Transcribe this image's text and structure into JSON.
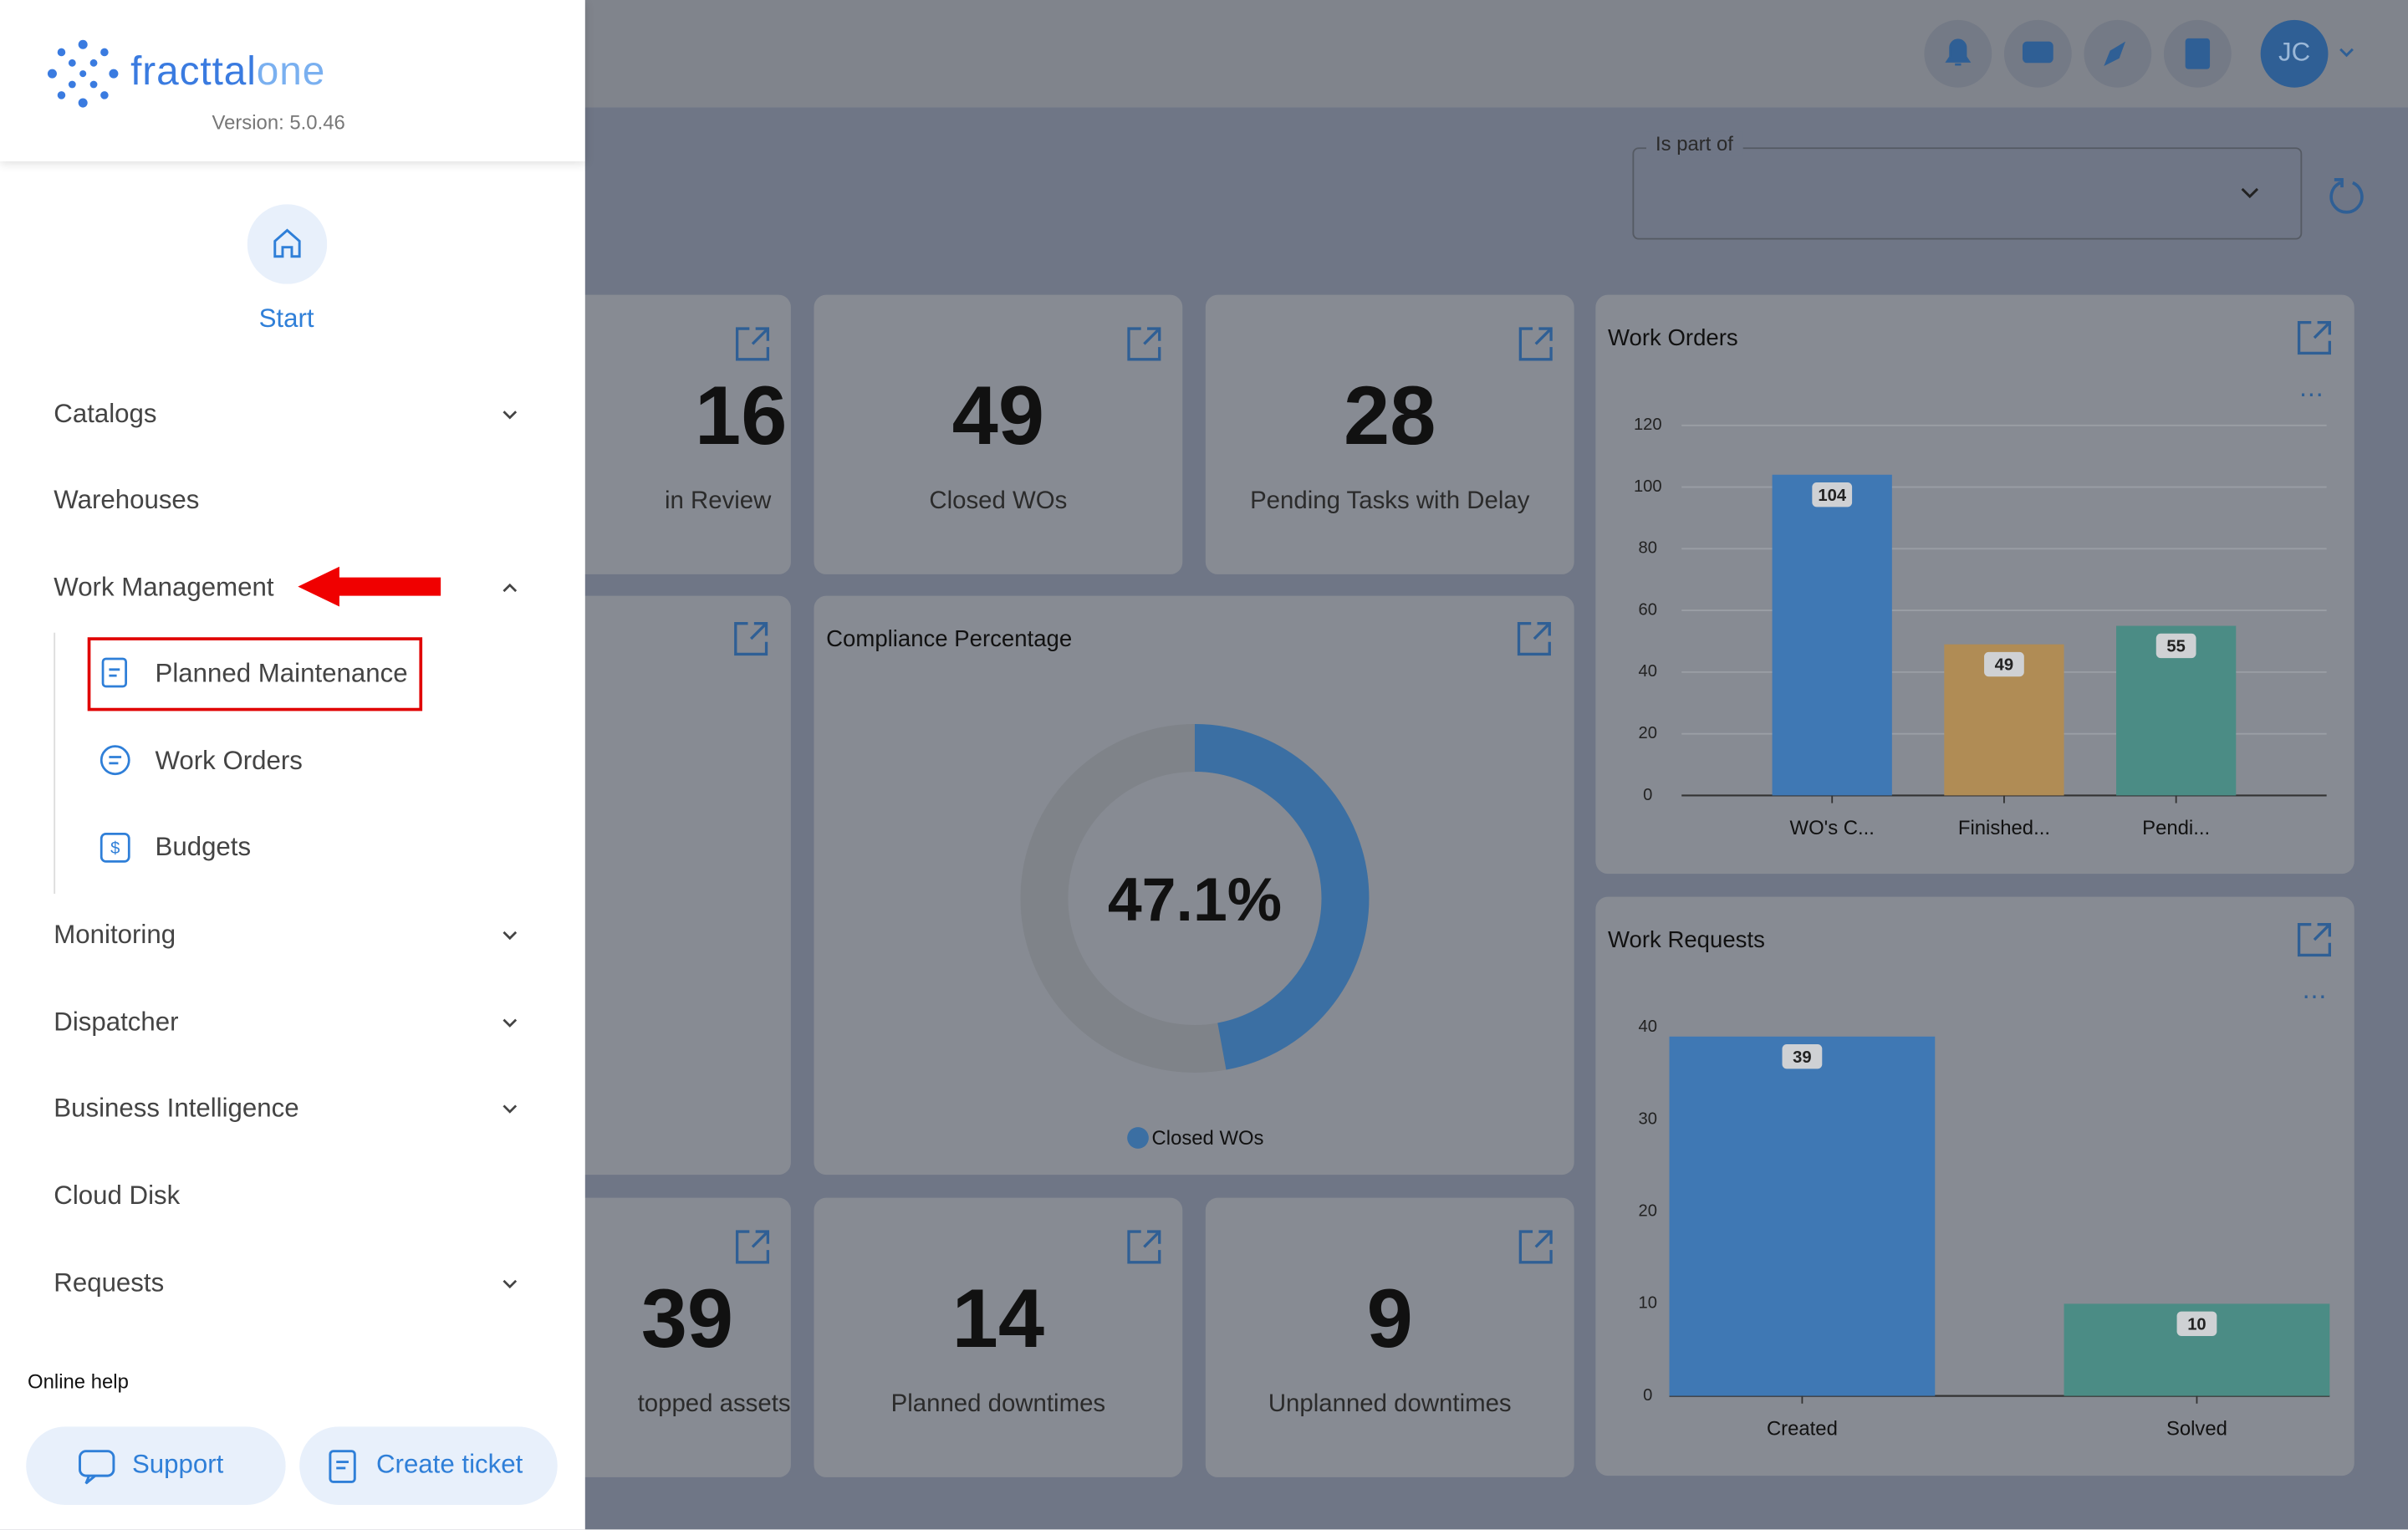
{
  "header": {
    "avatar": "JC"
  },
  "sidebar": {
    "logo": [
      "fracttal",
      "one"
    ],
    "version": "Version: 5.0.46",
    "start": "Start",
    "menu": [
      "Catalogs",
      "Warehouses",
      "Work Management",
      "Monitoring",
      "Dispatcher",
      "Business Intelligence",
      "Cloud Disk",
      "Requests"
    ],
    "submenu": [
      "Planned Maintenance",
      "Work Orders",
      "Budgets"
    ],
    "online_help": "Online help",
    "buttons": [
      "Support",
      "Create ticket"
    ]
  },
  "filter": {
    "label": "Is part of"
  },
  "kpis": [
    {
      "value": 16,
      "label": "in Review"
    },
    {
      "value": 49,
      "label": "Closed WOs"
    },
    {
      "value": 28,
      "label": "Pending Tasks with Delay"
    },
    {
      "value": 39,
      "label": "topped assets"
    },
    {
      "value": 14,
      "label": "Planned downtimes"
    },
    {
      "value": 9,
      "label": "Unplanned downtimes"
    }
  ],
  "chart_data": [
    {
      "type": "donut",
      "title": "Compliance Percentage",
      "series": [
        {
          "name": "Closed WOs",
          "color": "#3b6fa3",
          "values": [
            47.1
          ],
          "value_labels": [
            "47.1%"
          ]
        }
      ]
    },
    {
      "type": "bar",
      "title": "Work Orders",
      "categories": [
        "WO's C...",
        "Finished...",
        "Pendi..."
      ],
      "values": [
        104,
        49,
        55
      ],
      "colors": [
        "#3f78b4",
        "#b08c55",
        "#4b8c85"
      ],
      "ylim": [
        0,
        120
      ],
      "yticks": [
        0,
        20,
        40,
        60,
        80,
        100,
        120
      ],
      "grid": true
    },
    {
      "type": "bar",
      "title": "Work Requests",
      "categories": [
        "Created",
        "Solved"
      ],
      "values": [
        39,
        10
      ],
      "colors": [
        "#3f78b4",
        "#4b8c85"
      ],
      "ylim": [
        0,
        40
      ],
      "yticks": [
        0,
        10,
        20,
        30,
        40
      ],
      "grid": false
    }
  ]
}
